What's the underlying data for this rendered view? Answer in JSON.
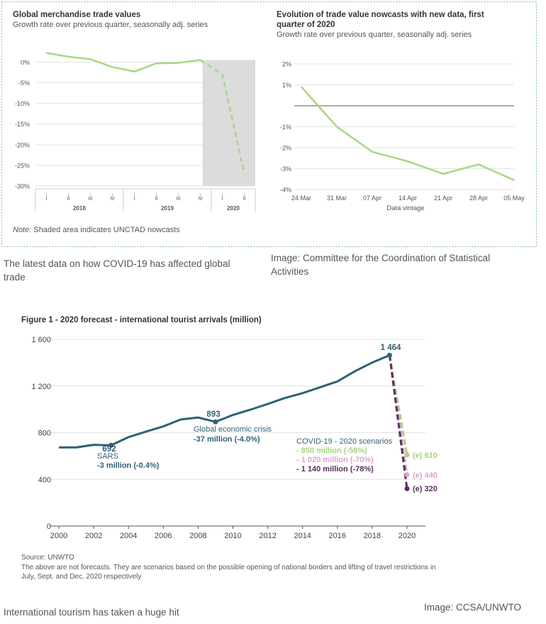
{
  "panel_top": {
    "left_chart": {
      "title": "Global merchandise trade values",
      "subtitle": "Growth rate over previous quarter, seasonally adj. series",
      "note_label": "Note:",
      "note_text": " Shaded area indicates UNCTAD nowcasts"
    },
    "right_chart": {
      "title_line1": "Evolution of trade value nowcasts with new data, first",
      "title_line2": "quarter of 2020",
      "subtitle": "Growth rate over previous quarter, seasonally adj. series"
    }
  },
  "captions": {
    "top_left": "The latest data on how COVID-19 has affected global trade",
    "top_right": "Image: Committee for the Coordination of Statistical Activities",
    "bottom_left": "International tourism has taken a huge hit",
    "bottom_right": "Image: CCSA/UNWTO"
  },
  "figure1": {
    "title": "Figure 1 - 2020 forecast - international tourist arrivals (million)",
    "source": "Source: UNWTO",
    "footnote_line1": "The above are not forecasts. They are scenarios based on the possible opening of national borders and lifting of travel restrictions in",
    "footnote_line2": "July, Sept. and Dec. 2020 respectively",
    "annotations": {
      "peak_2019": "1 464",
      "crisis_2009": "893",
      "crisis_2009_label": "Global economic crisis",
      "crisis_2009_change": "-37 million (-4.0%)",
      "sars_2003": "692",
      "sars_label": "SARS",
      "sars_change": "-3 million (-0.4%)",
      "covid_title": "COVID-19 - 2020 scenarios",
      "covid_s1": "- 850 million (-58%)",
      "covid_s2": "- 1 020 million (-70%)",
      "covid_s3": "- 1 140 million (-78%)",
      "end_s1": "(e) 610",
      "end_s2": "(e) 440",
      "end_s3": "(e) 320"
    }
  },
  "colors": {
    "green": "#a6d785",
    "shade": "#dcdcdc",
    "teal": "#2f6176",
    "scenario_green": "#a9d37e",
    "scenario_pink": "#dca3cf",
    "scenario_purple": "#5c2d5e"
  },
  "chart_data": [
    {
      "type": "line",
      "title": "Global merchandise trade values",
      "subtitle": "Growth rate over previous quarter, seasonally adj. series",
      "categories": [
        "I",
        "II",
        "III",
        "IV",
        "I",
        "II",
        "III",
        "IV",
        "I",
        "II"
      ],
      "groups": [
        {
          "label": "2018",
          "count": 4
        },
        {
          "label": "2019",
          "count": 4
        },
        {
          "label": "2020",
          "count": 2
        }
      ],
      "series": [
        {
          "values": [
            2.2,
            1.3,
            0.7,
            -1.2,
            -2.3,
            -0.3,
            -0.2,
            0.5,
            -3.0,
            -27.0
          ]
        }
      ],
      "nowcast_from_index": 7,
      "shaded_from_index": 7.1,
      "ylim": [
        -30,
        3
      ],
      "yticks": [
        0,
        -5,
        -10,
        -15,
        -20,
        -25,
        -30
      ],
      "ytick_labels": [
        "0%",
        "-5%",
        "-10%",
        "-15%",
        "-20%",
        "-25%",
        "-30%"
      ],
      "grid": true
    },
    {
      "type": "line",
      "title": "Evolution of trade value nowcasts with new data, first quarter of 2020",
      "subtitle": "Growth rate over previous quarter, seasonally adj. series",
      "xlabel": "Data vintage",
      "categories": [
        "24 Mar",
        "31 Mar",
        "07 Apr",
        "14 Apr",
        "21 Apr",
        "28 Apr",
        "05 May"
      ],
      "series": [
        {
          "values": [
            0.9,
            -1.0,
            -2.2,
            -2.65,
            -3.25,
            -2.8,
            -3.55
          ]
        }
      ],
      "ylim": [
        -4,
        2
      ],
      "yticks": [
        2,
        1,
        -1,
        -2,
        -3,
        -4
      ],
      "ytick_labels": [
        "2%",
        "1%",
        "-1%",
        "-2%",
        "-3%",
        "-4%"
      ],
      "grid": true
    },
    {
      "type": "line",
      "title": "Figure 1 - 2020 forecast - international tourist arrivals (million)",
      "x": [
        2000,
        2001,
        2002,
        2003,
        2004,
        2005,
        2006,
        2007,
        2008,
        2009,
        2010,
        2011,
        2012,
        2013,
        2014,
        2015,
        2016,
        2017,
        2018,
        2019
      ],
      "series": [
        {
          "values": [
            674,
            674,
            696,
            692,
            762,
            809,
            854,
            913,
            930,
            893,
            952,
            997,
            1046,
            1098,
            1139,
            1189,
            1239,
            1326,
            1401,
            1464
          ]
        }
      ],
      "scenarios": [
        {
          "name": "- 850 million (-58%)",
          "from": [
            2019,
            1464
          ],
          "to": [
            2020,
            610
          ]
        },
        {
          "name": "- 1 020 million (-70%)",
          "from": [
            2019,
            1464
          ],
          "to": [
            2020,
            440
          ]
        },
        {
          "name": "- 1 140 million (-78%)",
          "from": [
            2019,
            1464
          ],
          "to": [
            2020,
            320
          ]
        }
      ],
      "xticks": [
        2000,
        2002,
        2004,
        2006,
        2008,
        2010,
        2012,
        2014,
        2016,
        2018,
        2020
      ],
      "xlim": [
        2000,
        2020
      ],
      "yticks": [
        0,
        400,
        800,
        1200,
        1600
      ],
      "ytick_labels": [
        "0",
        "400",
        "800",
        "1 200",
        "1 600"
      ],
      "ylim": [
        0,
        1600
      ],
      "grid": true
    }
  ]
}
